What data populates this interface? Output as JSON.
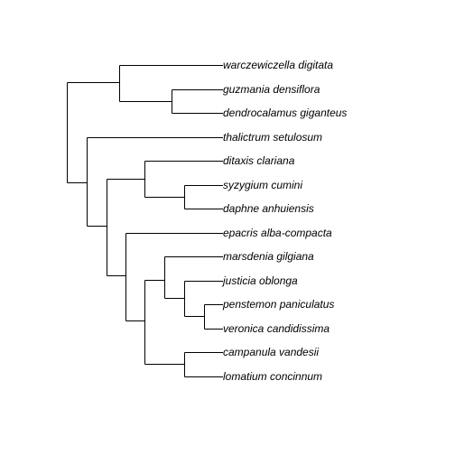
{
  "leaves": [
    "warczewiczella digitata",
    "guzmania densiflora",
    "dendrocalamus giganteus",
    "thalictrum setulosum",
    "ditaxis clariana",
    "syzygium cumini",
    "daphne anhuiensis",
    "epacris alba-compacta",
    "marsdenia gilgiana",
    "justicia oblonga",
    "penstemon paniculatus",
    "veronica candidissima",
    "campanula vandesii",
    "lomatium concinnum"
  ]
}
